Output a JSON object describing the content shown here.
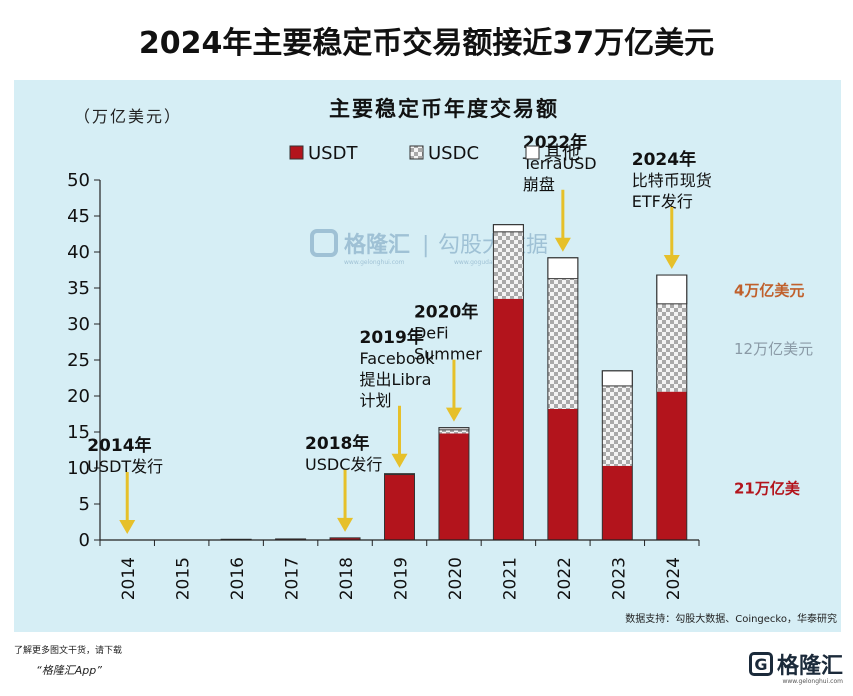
{
  "headline": "2024年主要稳定币交易额接近37万亿美元",
  "chart_data": {
    "type": "bar",
    "stacked": true,
    "title": "主要稳定币年度交易额",
    "ylabel": "（万亿美元）",
    "ylim": [
      0,
      50
    ],
    "yticks": [
      0,
      5,
      10,
      15,
      20,
      25,
      30,
      35,
      40,
      45,
      50
    ],
    "categories": [
      "2014",
      "2015",
      "2016",
      "2017",
      "2018",
      "2019",
      "2020",
      "2021",
      "2022",
      "2023",
      "2024"
    ],
    "series": [
      {
        "name": "USDT",
        "color": "#b3141c",
        "pattern": "solid",
        "values": [
          0,
          0,
          0.1,
          0.15,
          0.3,
          9.1,
          14.8,
          33.5,
          18.2,
          10.3,
          20.6
        ]
      },
      {
        "name": "USDC",
        "color": "#bfbfbf",
        "pattern": "checker",
        "values": [
          0,
          0,
          0,
          0,
          0,
          0,
          0.5,
          9.3,
          18.1,
          11.1,
          12.2
        ]
      },
      {
        "name": "其他",
        "color": "#ffffff",
        "pattern": "outline",
        "values": [
          0,
          0,
          0,
          0,
          0,
          0.1,
          0.3,
          1.0,
          2.9,
          2.1,
          4.0
        ]
      }
    ],
    "legend_position": "top",
    "annotations": [
      {
        "category": "2014",
        "year": "2014年",
        "lines": [
          "USDT发行"
        ]
      },
      {
        "category": "2018",
        "year": "2018年",
        "lines": [
          "USDC发行"
        ]
      },
      {
        "category": "2019",
        "year": "2019年",
        "lines": [
          "Facebook",
          "提出Libra",
          "计划"
        ]
      },
      {
        "category": "2020",
        "year": "2020年",
        "lines": [
          "DeFi",
          "Summer"
        ]
      },
      {
        "category": "2022",
        "year": "2022年",
        "lines": [
          "TerraUSD",
          "崩盘"
        ]
      },
      {
        "category": "2024",
        "year": "2024年",
        "lines": [
          "比特币现货",
          "ETF发行"
        ]
      }
    ],
    "side_labels": [
      {
        "text": "4万亿美元",
        "color": "#c0602c"
      },
      {
        "text": "12万亿美元",
        "color": "#8a9aa6"
      },
      {
        "text": "21万亿美",
        "color": "#b3141c"
      }
    ],
    "source": "数据支持：勾股大数据、Coingecko，华泰研究"
  },
  "watermark": {
    "brand": "格隆汇",
    "divider": "|",
    "sub": "勾股大数据",
    "site_left": "www.gelonghui.com",
    "site_right": "www.gogudata.com"
  },
  "footer": {
    "line1": "了解更多图文干货，请下载",
    "app": "“格隆汇App”",
    "logo_mark": "G",
    "logo_text": "格隆汇",
    "logo_sub": "www.gelonghui.com"
  }
}
